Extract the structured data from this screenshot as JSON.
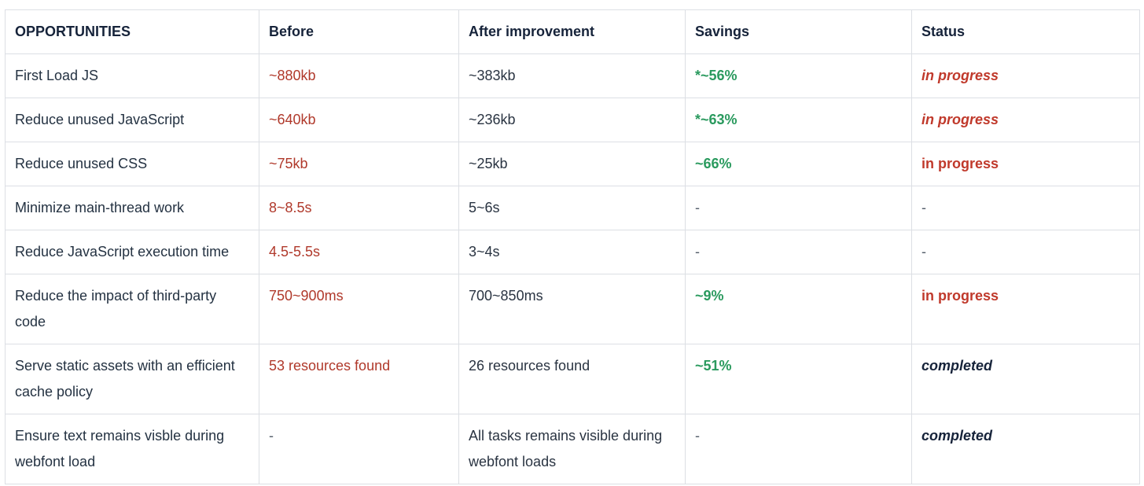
{
  "headers": [
    "OPPORTUNITIES",
    "Before",
    "After improvement",
    "Savings",
    "Status"
  ],
  "rows": [
    {
      "opportunity": "First Load JS",
      "before": "~880kb",
      "after": "~383kb",
      "savings": "*~56%",
      "status": "in progress",
      "status_kind": "progress-italic"
    },
    {
      "opportunity": "Reduce unused JavaScript",
      "before": "~640kb",
      "after": "~236kb",
      "savings": "*~63%",
      "status": "in progress",
      "status_kind": "progress-italic"
    },
    {
      "opportunity": "Reduce unused CSS",
      "before": "~75kb",
      "after": "~25kb",
      "savings": "~66%",
      "status": "in progress",
      "status_kind": "progress"
    },
    {
      "opportunity": "Minimize main-thread work",
      "before": "8~8.5s",
      "after": "5~6s",
      "savings": "-",
      "status": "-",
      "status_kind": "dash"
    },
    {
      "opportunity": "Reduce JavaScript execution time",
      "before": "4.5-5.5s",
      "after": "3~4s",
      "savings": "-",
      "status": "-",
      "status_kind": "dash"
    },
    {
      "opportunity": "Reduce the impact of third-party code",
      "before": "750~900ms",
      "after": "700~850ms",
      "savings": "~9%",
      "status": "in progress",
      "status_kind": "progress"
    },
    {
      "opportunity": "Serve static assets with an efficient cache policy",
      "before": "53 resources found",
      "after": "26 resources found",
      "savings": "~51%",
      "status": "completed",
      "status_kind": "done"
    },
    {
      "opportunity": "Ensure text remains visble during webfont load",
      "before": "-",
      "after": "All tasks remains visible during webfont loads",
      "savings": "-",
      "status": "completed",
      "status_kind": "done"
    }
  ],
  "colors": {
    "before": "#b0392b",
    "savings": "#2a9a5e",
    "in_progress": "#c0392b",
    "completed": "#16233a",
    "border": "#dcdfe4"
  }
}
